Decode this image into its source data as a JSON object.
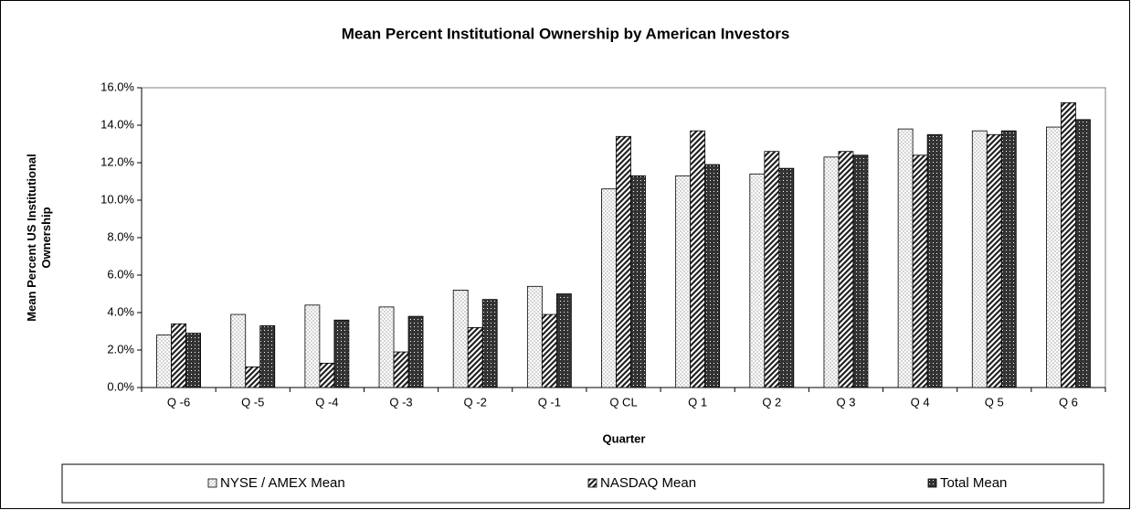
{
  "chart_data": {
    "type": "bar",
    "title": "Mean Percent Institutional Ownership by American Investors",
    "x_label": "Quarter",
    "y_label": "Mean Percent US Institutional Ownership",
    "categories": [
      "Q -6",
      "Q -5",
      "Q -4",
      "Q -3",
      "Q -2",
      "Q -1",
      "Q CL",
      "Q 1",
      "Q 2",
      "Q 3",
      "Q 4",
      "Q 5",
      "Q 6"
    ],
    "series": [
      {
        "name": "NYSE / AMEX Mean",
        "color": "#d4d4d4",
        "values": [
          2.8,
          3.9,
          4.4,
          4.3,
          5.2,
          5.4,
          10.6,
          11.3,
          11.4,
          12.3,
          13.8,
          13.7,
          13.9
        ]
      },
      {
        "name": "NASDAQ Mean",
        "color": "#222222",
        "values": [
          3.4,
          1.1,
          1.3,
          1.9,
          3.2,
          3.9,
          13.4,
          13.7,
          12.6,
          12.6,
          12.4,
          13.5,
          15.2
        ]
      },
      {
        "name": "Total Mean",
        "color": "#333333",
        "values": [
          2.9,
          3.3,
          3.6,
          3.8,
          4.7,
          5.0,
          11.3,
          11.9,
          11.7,
          12.4,
          13.5,
          13.7,
          14.3
        ]
      }
    ],
    "ylim": [
      0,
      16
    ],
    "yticks": [
      {
        "value": 0,
        "label": "0.0%"
      },
      {
        "value": 2,
        "label": "2.0%"
      },
      {
        "value": 4,
        "label": "4.0%"
      },
      {
        "value": 6,
        "label": "6.0%"
      },
      {
        "value": 8,
        "label": "8.0%"
      },
      {
        "value": 10,
        "label": "10.0%"
      },
      {
        "value": 12,
        "label": "12.0%"
      },
      {
        "value": 14,
        "label": "14.0%"
      },
      {
        "value": 16,
        "label": "16.0%"
      }
    ],
    "legend": "bottom"
  }
}
